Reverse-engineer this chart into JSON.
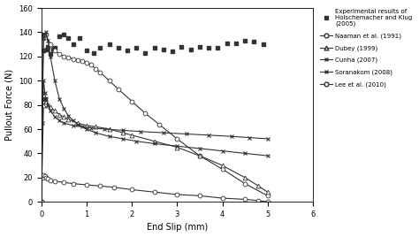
{
  "title": "",
  "xlabel": "End Slip (mm)",
  "ylabel": "Pullout Force (N)",
  "xlim": [
    0,
    6
  ],
  "ylim": [
    0,
    160
  ],
  "xticks": [
    0,
    1,
    2,
    3,
    4,
    5,
    6
  ],
  "yticks": [
    0,
    20,
    40,
    60,
    80,
    100,
    120,
    140,
    160
  ],
  "experimental": {
    "x": [
      0.02,
      0.05,
      0.08,
      0.12,
      0.15,
      0.2,
      0.25,
      0.3,
      0.4,
      0.5,
      0.6,
      0.7,
      0.85,
      1.0,
      1.15,
      1.3,
      1.5,
      1.7,
      1.9,
      2.1,
      2.3,
      2.5,
      2.7,
      2.9,
      3.1,
      3.3,
      3.5,
      3.7,
      3.9,
      4.1,
      4.3,
      4.5,
      4.7,
      4.9
    ],
    "y": [
      138,
      125,
      85,
      126,
      128,
      122,
      126,
      127,
      137,
      138,
      135,
      130,
      135,
      125,
      123,
      127,
      130,
      127,
      125,
      127,
      123,
      127,
      126,
      124,
      128,
      126,
      128,
      127,
      127,
      131,
      131,
      133,
      132,
      130
    ]
  },
  "naaman": {
    "x": [
      0,
      0.05,
      0.1,
      0.2,
      0.3,
      0.4,
      0.5,
      0.6,
      0.7,
      0.8,
      0.9,
      1.0,
      1.1,
      1.2,
      1.3,
      1.5,
      1.7,
      2.0,
      2.3,
      2.6,
      3.0,
      3.5,
      4.0,
      4.5,
      5.0
    ],
    "y": [
      0,
      135,
      138,
      130,
      125,
      122,
      120,
      119,
      118,
      117,
      116,
      115,
      113,
      110,
      107,
      100,
      93,
      83,
      73,
      64,
      52,
      38,
      27,
      15,
      5
    ]
  },
  "dubey": {
    "x": [
      0,
      0.05,
      0.1,
      0.15,
      0.2,
      0.3,
      0.4,
      0.5,
      0.6,
      0.8,
      1.0,
      1.2,
      1.5,
      1.8,
      2.0,
      2.5,
      3.0,
      3.5,
      4.0,
      4.5,
      4.8,
      5.0
    ],
    "y": [
      0,
      80,
      83,
      80,
      78,
      75,
      72,
      70,
      68,
      65,
      63,
      62,
      60,
      57,
      55,
      50,
      45,
      38,
      30,
      20,
      13,
      8
    ]
  },
  "cunha": {
    "x": [
      0,
      0.02,
      0.05,
      0.08,
      0.1,
      0.15,
      0.2,
      0.3,
      0.4,
      0.5,
      0.6,
      0.7,
      0.8,
      1.0,
      1.2,
      1.5,
      1.8,
      2.1,
      2.5,
      3.0,
      3.5,
      4.0,
      4.5,
      5.0
    ],
    "y": [
      0,
      90,
      135,
      138,
      140,
      133,
      120,
      100,
      85,
      77,
      71,
      67,
      64,
      60,
      57,
      54,
      52,
      50,
      48,
      46,
      44,
      42,
      40,
      38
    ]
  },
  "soranakom": {
    "x": [
      0,
      0.02,
      0.05,
      0.08,
      0.1,
      0.15,
      0.2,
      0.3,
      0.4,
      0.5,
      0.7,
      0.9,
      1.1,
      1.4,
      1.8,
      2.2,
      2.7,
      3.2,
      3.7,
      4.2,
      4.6,
      5.0
    ],
    "y": [
      0,
      65,
      100,
      90,
      85,
      80,
      75,
      70,
      67,
      65,
      63,
      62,
      61,
      60,
      59,
      58,
      57,
      56,
      55,
      54,
      53,
      52
    ]
  },
  "lee": {
    "x": [
      0,
      0.02,
      0.05,
      0.08,
      0.1,
      0.15,
      0.2,
      0.3,
      0.5,
      0.7,
      1.0,
      1.3,
      1.6,
      2.0,
      2.5,
      3.0,
      3.5,
      4.0,
      4.5,
      4.8,
      5.0
    ],
    "y": [
      0,
      20,
      22,
      21,
      20,
      19,
      18,
      17,
      16,
      15,
      14,
      13,
      12,
      10,
      8,
      6,
      5,
      3,
      2,
      1,
      0
    ]
  },
  "color": "#333333",
  "legend_labels": {
    "experimental": "Experimental results of\nHolschemacher and Klug\n(2005)",
    "naaman": "Naaman et al. (1991)",
    "dubey": "Dubey (1999)",
    "cunha": "Cunha (2007)",
    "soranakom": "Soranakom (2008)",
    "lee": "Lee et al. (2010)"
  }
}
